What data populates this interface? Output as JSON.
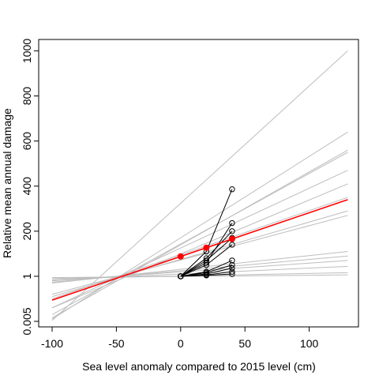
{
  "chart_data": {
    "type": "line",
    "xlabel": "Sea level anomaly compared to 2015 level (cm)",
    "ylabel": "Relative mean annual damage",
    "xlim": [
      -105,
      140
    ],
    "x_ticks": [
      -100,
      -50,
      0,
      50,
      100
    ],
    "y_scale": "log-like (labeled ticks not evenly spaced in value)",
    "y_ticks": [
      {
        "label": "0.005",
        "pos": 0.0
      },
      {
        "label": "1",
        "pos": 1.0
      },
      {
        "label": "200",
        "pos": 2.0
      },
      {
        "label": "400",
        "pos": 3.0
      },
      {
        "label": "600",
        "pos": 4.0
      },
      {
        "label": "800",
        "pos": 5.0
      },
      {
        "label": "1000",
        "pos": 6.0
      }
    ],
    "observations": {
      "x": [
        0,
        20,
        40
      ],
      "series": [
        {
          "y": [
            1.0,
            1.55,
            2.93
          ]
        },
        {
          "y": [
            1.0,
            1.3,
            2.18
          ]
        },
        {
          "y": [
            1.0,
            1.4,
            2.0
          ]
        },
        {
          "y": [
            1.0,
            1.35,
            1.85
          ]
        },
        {
          "y": [
            1.0,
            1.25,
            1.7
          ]
        },
        {
          "y": [
            1.0,
            1.1,
            1.35
          ]
        },
        {
          "y": [
            1.0,
            1.08,
            1.25
          ]
        },
        {
          "y": [
            1.0,
            1.05,
            1.18
          ]
        },
        {
          "y": [
            1.0,
            1.03,
            1.1
          ]
        },
        {
          "y": [
            1.0,
            1.02,
            1.05
          ]
        }
      ]
    },
    "trend_lines": {
      "x_range": [
        -100,
        130
      ],
      "lines": [
        {
          "y_start": 0.02,
          "y_end": 6.0
        },
        {
          "y_start": 0.05,
          "y_end": 4.2
        },
        {
          "y_start": 0.08,
          "y_end": 3.8
        },
        {
          "y_start": 0.15,
          "y_end": 3.75
        },
        {
          "y_start": 0.3,
          "y_end": 3.35
        },
        {
          "y_start": 0.3,
          "y_end": 3.05
        },
        {
          "y_start": 0.5,
          "y_end": 2.75
        },
        {
          "y_start": 0.55,
          "y_end": 2.45
        },
        {
          "y_start": 0.6,
          "y_end": 2.35
        },
        {
          "y_start": 0.85,
          "y_end": 1.55
        },
        {
          "y_start": 0.87,
          "y_end": 1.45
        },
        {
          "y_start": 0.9,
          "y_end": 1.35
        },
        {
          "y_start": 0.92,
          "y_end": 1.22
        },
        {
          "y_start": 0.95,
          "y_end": 1.08
        },
        {
          "y_start": 0.97,
          "y_end": 1.03
        }
      ],
      "mean_line": {
        "y_start": 0.47,
        "y_end": 2.7,
        "color": "#ff0000"
      }
    },
    "colors": {
      "trend": "#bdbdbd",
      "observation": "#000000",
      "mean": "#ff0000"
    }
  }
}
